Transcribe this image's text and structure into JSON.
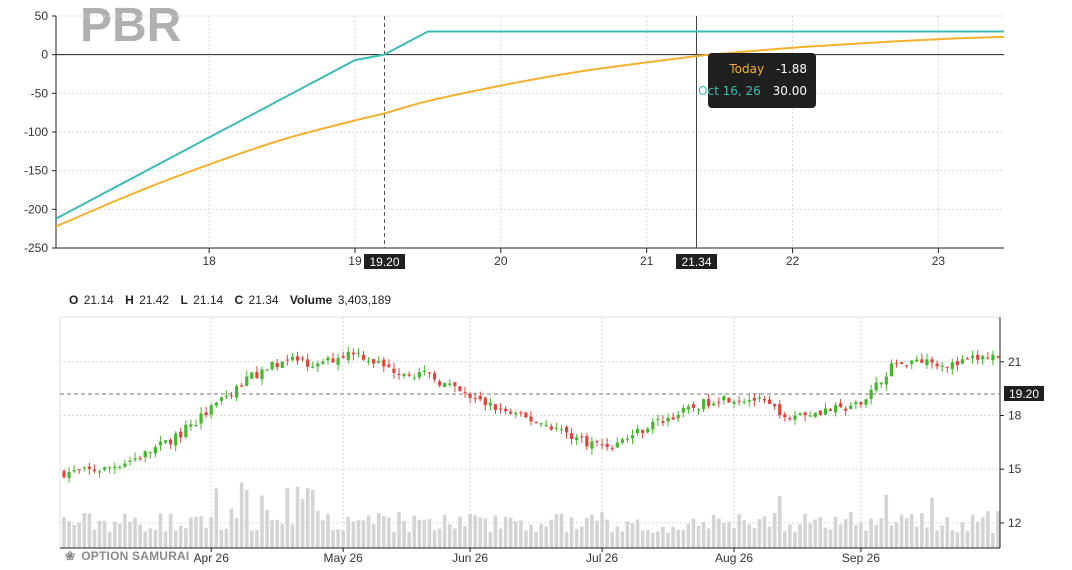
{
  "symbol": "PBR",
  "colors": {
    "expiry_line": "#3dbdb1",
    "today_line": "#f5b12e",
    "candle_up": "#44b72c",
    "candle_down": "#e0443b",
    "volume": "#d4d4d4",
    "grid": "#d8d8d8"
  },
  "tooltip": {
    "today_label": "Today",
    "today_value": "-1.88",
    "expiry_label": "Oct 16, 26",
    "expiry_value": "30.00"
  },
  "ohlc": {
    "o_label": "O",
    "o": "21.14",
    "h_label": "H",
    "h": "21.42",
    "l_label": "L",
    "l": "21.14",
    "c_label": "C",
    "c": "21.34",
    "volume_label": "Volume",
    "volume": "3,403,189"
  },
  "branding": {
    "text": "OPTION SAMURAI",
    "icon": "samurai-helmet-icon"
  },
  "chart_data": [
    {
      "type": "line",
      "title": "",
      "xlabel": "",
      "ylabel": "",
      "xlim": [
        16.95,
        23.45
      ],
      "ylim": [
        -250,
        50
      ],
      "x_ticks": [
        18,
        19,
        20,
        21,
        22,
        23
      ],
      "y_ticks": [
        50,
        0,
        -50,
        -100,
        -150,
        -200,
        -250
      ],
      "grid": true,
      "markers": [
        {
          "x": 19.2,
          "label": "19.20",
          "style": "dashed"
        },
        {
          "x": 21.34,
          "label": "21.34",
          "style": "solid"
        }
      ],
      "series": [
        {
          "key": "expiry",
          "x": [
            16.95,
            17.5,
            18.0,
            18.5,
            19.0,
            19.2,
            19.5,
            20.0,
            21.0,
            22.0,
            23.0,
            23.45
          ],
          "values": [
            -212,
            -157,
            -107,
            -57,
            -7,
            0,
            30,
            30,
            30,
            30,
            30,
            30
          ]
        },
        {
          "key": "today",
          "x": [
            16.95,
            17.5,
            18.0,
            18.5,
            19.0,
            19.2,
            19.5,
            20.0,
            20.5,
            21.0,
            21.34,
            21.5,
            22.0,
            22.5,
            23.0,
            23.45
          ],
          "values": [
            -222,
            -178,
            -142,
            -110,
            -85,
            -76,
            -60,
            -40,
            -23,
            -10,
            -1.88,
            1,
            9,
            15,
            20,
            23
          ]
        }
      ]
    },
    {
      "type": "candlestick",
      "title": "",
      "ylim": [
        10.6,
        23.5
      ],
      "y_ticks": [
        21,
        18,
        15,
        12
      ],
      "price_marker": "19.20",
      "x_ticks": [
        "Apr 26",
        "May 26",
        "Jun 26",
        "Jul 26",
        "Aug 26",
        "Sep 26"
      ],
      "x_tick_index": [
        29,
        55,
        80,
        106,
        132,
        157
      ],
      "waypoints": [
        [
          0,
          14.8
        ],
        [
          8,
          15.0
        ],
        [
          15,
          15.7
        ],
        [
          22,
          16.8
        ],
        [
          30,
          18.6
        ],
        [
          37,
          20.2
        ],
        [
          44,
          21.2
        ],
        [
          50,
          20.8
        ],
        [
          57,
          21.6
        ],
        [
          64,
          20.6
        ],
        [
          72,
          20.2
        ],
        [
          80,
          19.0
        ],
        [
          88,
          18.1
        ],
        [
          96,
          17.4
        ],
        [
          103,
          16.5
        ],
        [
          108,
          16.3
        ],
        [
          115,
          17.4
        ],
        [
          122,
          18.2
        ],
        [
          129,
          19.0
        ],
        [
          136,
          18.9
        ],
        [
          143,
          18.0
        ],
        [
          150,
          18.3
        ],
        [
          155,
          18.4
        ],
        [
          159,
          19.3
        ],
        [
          163,
          20.8
        ],
        [
          168,
          21.2
        ],
        [
          175,
          20.8
        ],
        [
          180,
          21.2
        ],
        [
          184,
          21.3
        ]
      ],
      "volume_range": [
        0,
        4.5
      ]
    }
  ]
}
